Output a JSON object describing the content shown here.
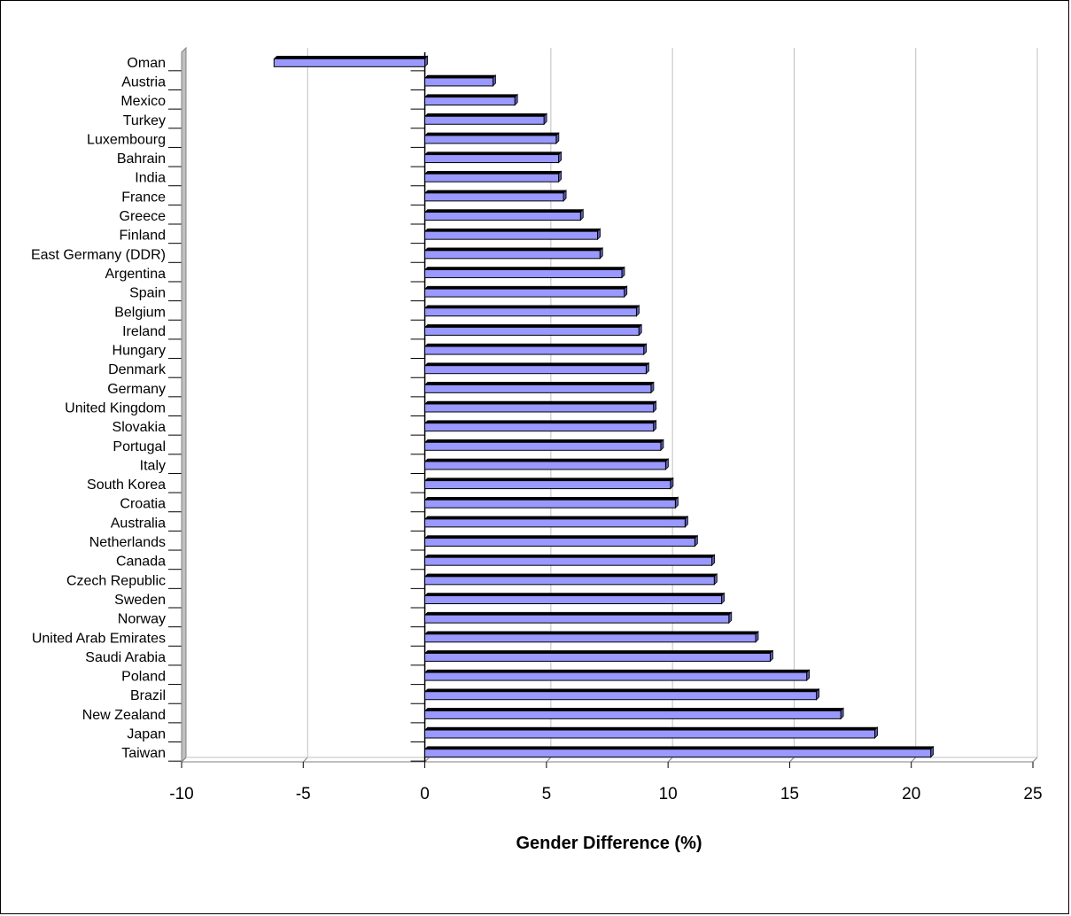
{
  "chart_data": {
    "type": "bar",
    "orientation": "horizontal",
    "categories": [
      "Oman",
      "Austria",
      "Mexico",
      "Turkey",
      "Luxembourg",
      "Bahrain",
      "India",
      "France",
      "Greece",
      "Finland",
      "East Germany (DDR)",
      "Argentina",
      "Spain",
      "Belgium",
      "Ireland",
      "Hungary",
      "Denmark",
      "Germany",
      "United Kingdom",
      "Slovakia",
      "Portugal",
      "Italy",
      "South Korea",
      "Croatia",
      "Australia",
      "Netherlands",
      "Canada",
      "Czech Republic",
      "Sweden",
      "Norway",
      "United Arab Emirates",
      "Saudi Arabia",
      "Poland",
      "Brazil",
      "New Zealand",
      "Japan",
      "Taiwan"
    ],
    "values": [
      -6.2,
      2.8,
      3.7,
      4.9,
      5.4,
      5.5,
      5.5,
      5.7,
      6.4,
      7.1,
      7.2,
      8.1,
      8.2,
      8.7,
      8.8,
      9.0,
      9.1,
      9.3,
      9.4,
      9.4,
      9.7,
      9.9,
      10.1,
      10.3,
      10.7,
      11.1,
      11.8,
      11.9,
      12.2,
      12.5,
      13.6,
      14.2,
      15.7,
      16.1,
      17.1,
      18.5,
      20.8
    ],
    "xlabel": "Gender Difference (%)",
    "xlim": [
      -10,
      25
    ],
    "xticks": [
      "-10",
      "-5",
      "0",
      "5",
      "10",
      "15",
      "20",
      "25"
    ],
    "grid": true,
    "legend": "none",
    "colors": {
      "bar_fill": "#9999ff",
      "bar_side": "#5a5ab0",
      "bar_edge": "#000000",
      "grid": "#c0c0c0"
    }
  }
}
